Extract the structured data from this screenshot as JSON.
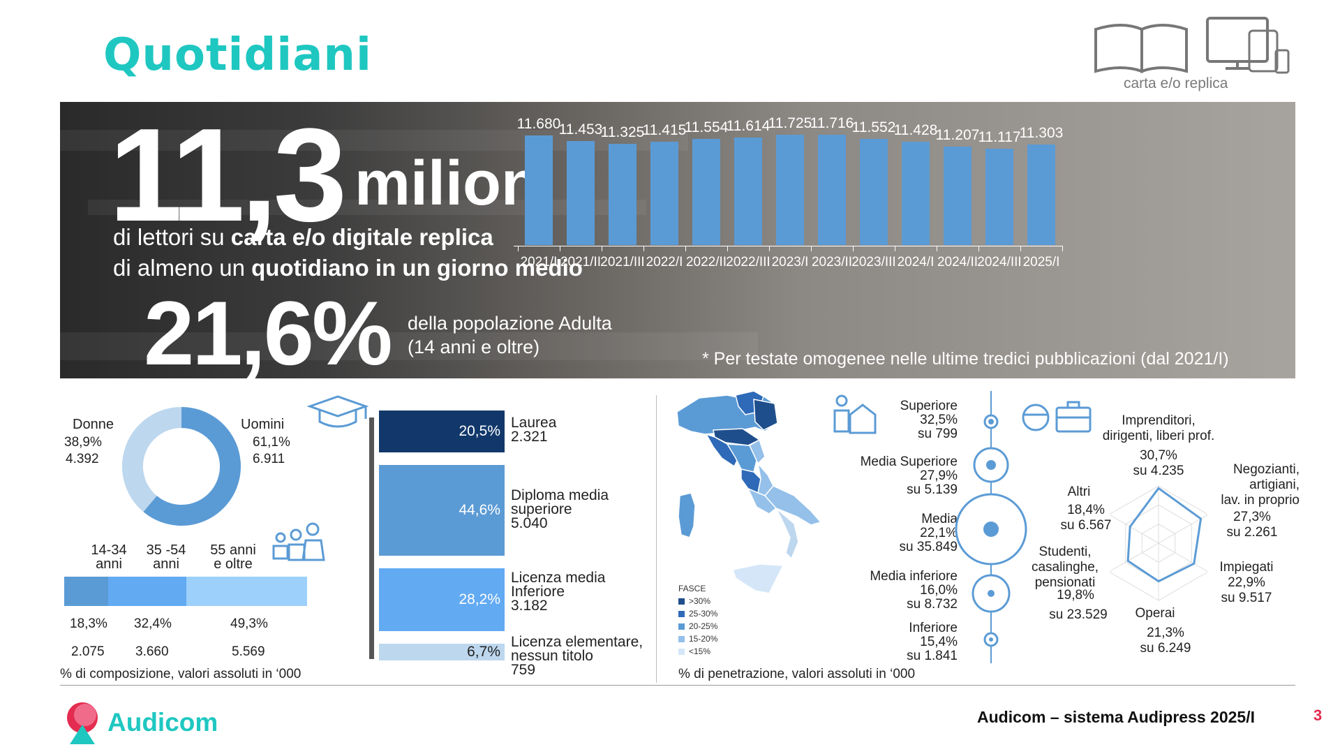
{
  "title": "Quotidiani",
  "device_caption": "carta e/o replica",
  "banner": {
    "big_number": "11,3",
    "big_unit": "milioni",
    "sub_line1_pre": "di lettori su ",
    "sub_line1_bold": "carta e/o digitale replica",
    "sub_line2_pre": "di almeno un ",
    "sub_line2_bold": "quotidiano in un giorno medio",
    "pct": "21,6%",
    "pop_line1": "della popolazione Adulta",
    "pop_line2": "(14 anni e oltre)",
    "note": "* Per testate omogenee nelle ultime tredici pubblicazioni (dal 2021/I)"
  },
  "chart_data": {
    "type": "bar",
    "categories": [
      "2021/I",
      "2021/II",
      "2021/III",
      "2022/I",
      "2022/II",
      "2022/III",
      "2023/I",
      "2023/II",
      "2023/III",
      "2024/I",
      "2024/II",
      "2024/III",
      "2025/I"
    ],
    "values": [
      11680,
      11453,
      11325,
      11415,
      11554,
      11614,
      11725,
      11716,
      11552,
      11428,
      11207,
      11117,
      11303
    ],
    "value_labels": [
      "11.680",
      "11.453",
      "11.325",
      "11.415",
      "11.554",
      "11.614",
      "11.725",
      "11.716",
      "11.552",
      "11.428",
      "11.207",
      "11.117",
      "11.303"
    ],
    "color": "#5b9bd5"
  },
  "gender": {
    "donne_label": "Donne",
    "donne_pct": "38,9%",
    "donne_val": "4.392",
    "uomini_label": "Uomini",
    "uomini_pct": "61,1%",
    "uomini_val": "6.911",
    "donne_share": 38.9,
    "color_uomini": "#5b9bd5",
    "color_donne": "#bdd7ee"
  },
  "age": {
    "groups": [
      {
        "label1": "14-34",
        "label2": "anni",
        "pct": "18,3%",
        "val": "2.075",
        "share": 18.3,
        "color": "#5b9bd5"
      },
      {
        "label1": "35 -54",
        "label2": "anni",
        "pct": "32,4%",
        "val": "3.660",
        "share": 32.4,
        "color": "#62aaf2"
      },
      {
        "label1": "55 anni",
        "label2": "e oltre",
        "pct": "49,3%",
        "val": "5.569",
        "share": 49.3,
        "color": "#9dd0fa"
      }
    ],
    "footnote": "% di composizione, valori assoluti in ‘000"
  },
  "education": [
    {
      "pct": "20,5%",
      "l1": "Laurea",
      "l2": "2.321",
      "l3": "",
      "color": "#12386b"
    },
    {
      "pct": "44,6%",
      "l1": "Diploma media",
      "l2": "superiore",
      "l3": "5.040",
      "color": "#5b9bd5"
    },
    {
      "pct": "28,2%",
      "l1": "Licenza media",
      "l2": "Inferiore",
      "l3": "3.182",
      "color": "#62aaf2"
    },
    {
      "pct": "6,7%",
      "l1": "Licenza elementare,",
      "l2": "nessun titolo",
      "l3": "759",
      "color": "#bdd7ee"
    }
  ],
  "map": {
    "legend_title": "FASCE",
    "legend": [
      {
        "label": ">30%",
        "color": "#1f4e8c"
      },
      {
        "label": "25-30%",
        "color": "#2e6ab8"
      },
      {
        "label": "20-25%",
        "color": "#5b9bd5"
      },
      {
        "label": "15-20%",
        "color": "#94c0ea"
      },
      {
        "label": "<15%",
        "color": "#d4e6f8"
      }
    ],
    "footnote": "% di penetrazione, valori assoluti in ‘000"
  },
  "city": [
    {
      "l1": "Superiore",
      "pct": "32,5%",
      "val": "su 799"
    },
    {
      "l1": "Media Superiore",
      "pct": "27,9%",
      "val": "su 5.139"
    },
    {
      "l1": "Media",
      "pct": "22,1%",
      "val": "su 35.849"
    },
    {
      "l1": "Media inferiore",
      "pct": "16,0%",
      "val": "su 8.732"
    },
    {
      "l1": "Inferiore",
      "pct": "15,4%",
      "val": "su 1.841"
    }
  ],
  "profession": {
    "top_l1": "Imprenditori,",
    "top_l2": "dirigenti, liberi prof.",
    "top_pct": "30,7%",
    "top_val": "su 4.235",
    "neg_l1": "Negozianti,",
    "neg_l2": "artigiani,",
    "neg_l3": "lav. in proprio",
    "neg_pct": "27,3%",
    "neg_val": "su 2.261",
    "imp_l1": "Impiegati",
    "imp_pct": "22,9%",
    "imp_val": "su 9.517",
    "op_l1": "Operai",
    "op_pct": "21,3%",
    "op_val": "su 6.249",
    "stu_l1": "Studenti,",
    "stu_l2": "casalinghe,",
    "stu_l3": "pensionati",
    "stu_pct": "19,8%",
    "stu_val": "su 23.529",
    "alt_l1": "Altri",
    "alt_pct": "18,4%",
    "alt_val": "su 6.567",
    "radar_values": [
      30.7,
      27.3,
      22.9,
      21.3,
      19.8,
      18.4
    ]
  },
  "footer": {
    "brand": "Audicom",
    "text": "Audicom – sistema Audipress 2025/I",
    "page": "3"
  }
}
